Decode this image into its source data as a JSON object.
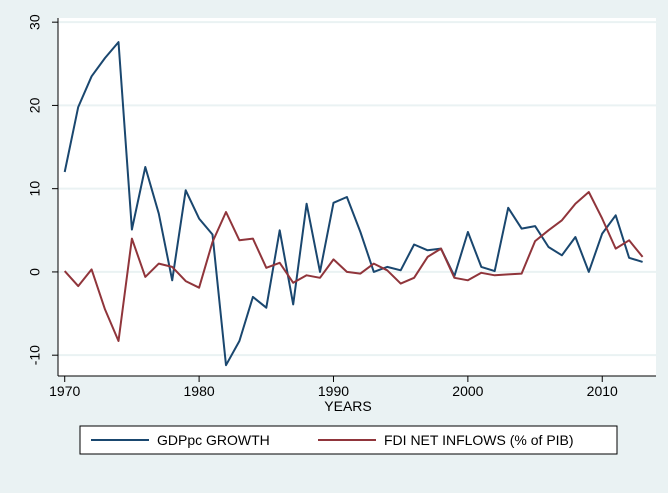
{
  "chart_data": {
    "type": "line",
    "xlabel": "YEARS",
    "ylabel": "",
    "xlim": [
      1969.5,
      2014
    ],
    "ylim": [
      -12.5,
      30.5
    ],
    "x_ticks": [
      1970,
      1980,
      1990,
      2000,
      2010
    ],
    "y_ticks": [
      -10,
      0,
      10,
      20,
      30
    ],
    "grid": true,
    "legend_position": "bottom",
    "colors": {
      "background": "#eaf2f3",
      "plot_area": "#ffffff",
      "grid": "#eaf2f3"
    },
    "x": [
      1970,
      1971,
      1972,
      1973,
      1974,
      1975,
      1976,
      1977,
      1978,
      1979,
      1980,
      1981,
      1982,
      1983,
      1984,
      1985,
      1986,
      1987,
      1988,
      1989,
      1990,
      1991,
      1992,
      1993,
      1994,
      1995,
      1996,
      1997,
      1998,
      1999,
      2000,
      2001,
      2002,
      2003,
      2004,
      2005,
      2006,
      2007,
      2008,
      2009,
      2010,
      2011,
      2012,
      2013
    ],
    "series": [
      {
        "name": "GDPpc GROWTH",
        "color": "#1a476f",
        "values": [
          12.0,
          19.8,
          23.5,
          25.7,
          27.6,
          5.1,
          12.6,
          7.0,
          -1.0,
          9.8,
          6.4,
          4.5,
          -11.2,
          -8.3,
          -3.0,
          -4.3,
          5.0,
          -3.9,
          8.2,
          0.0,
          8.3,
          9.0,
          4.8,
          0.0,
          0.6,
          0.2,
          3.3,
          2.6,
          2.8,
          -0.5,
          4.8,
          0.6,
          0.1,
          7.7,
          5.2,
          5.5,
          3.0,
          2.0,
          4.2,
          0.0,
          4.6,
          6.8,
          1.7,
          1.2
        ]
      },
      {
        "name": "FDI NET INFLOWS (% of PIB)",
        "color": "#90353b",
        "values": [
          0.1,
          -1.7,
          0.3,
          -4.5,
          -8.3,
          4.0,
          -0.6,
          1.0,
          0.6,
          -1.1,
          -1.9,
          3.6,
          7.2,
          3.8,
          4.0,
          0.5,
          1.1,
          -1.3,
          -0.4,
          -0.7,
          1.5,
          0.0,
          -0.2,
          1.0,
          0.2,
          -1.4,
          -0.7,
          1.8,
          2.8,
          -0.7,
          -1.0,
          -0.1,
          -0.4,
          -0.3,
          -0.2,
          3.7,
          5.0,
          6.2,
          8.2,
          9.6,
          6.4,
          2.8,
          3.8,
          1.8
        ]
      }
    ]
  }
}
